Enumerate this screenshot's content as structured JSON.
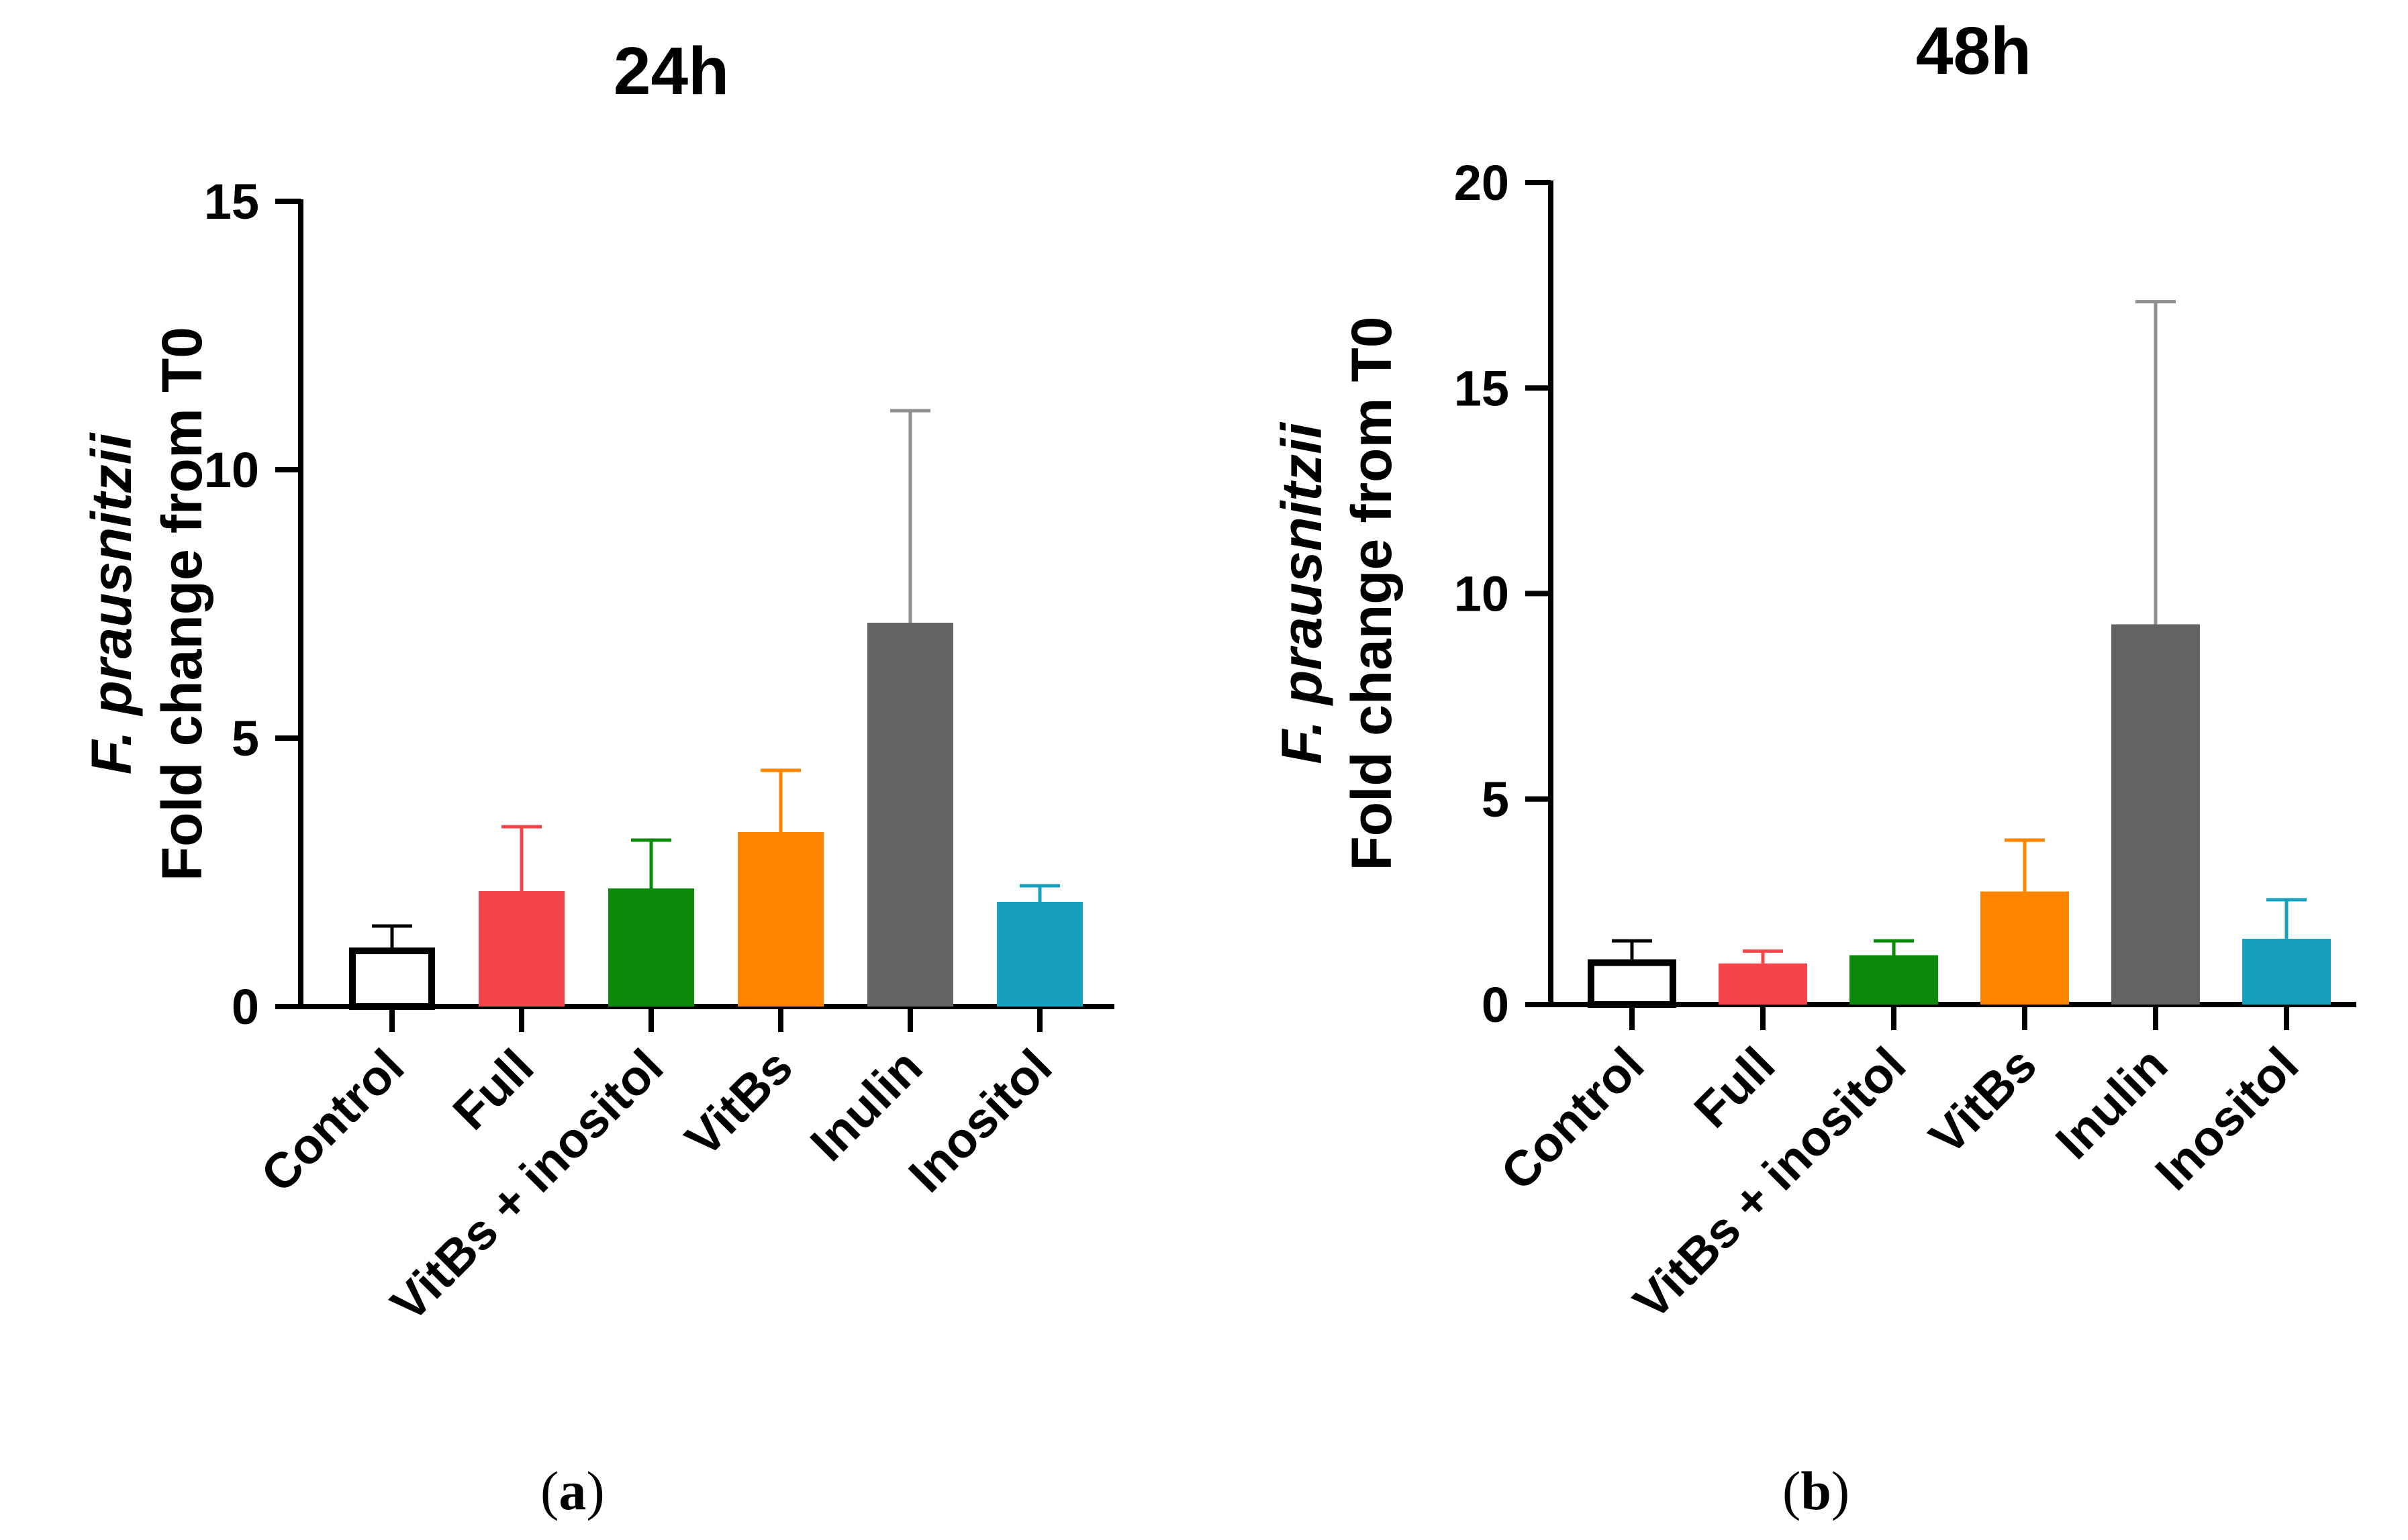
{
  "chart_data": [
    {
      "type": "bar",
      "panel": "(a)",
      "title": "24h",
      "ylabel_italic": "F. prausnitzii",
      "ylabel": "Fold change from T0",
      "xlabel": "",
      "ylim": [
        0,
        15
      ],
      "yticks": [
        0,
        5,
        10,
        15
      ],
      "categories": [
        "Control",
        "Full",
        "VitBs + inositol",
        "VitBs",
        "Inulin",
        "Inositol"
      ],
      "values": [
        1.1,
        2.15,
        2.2,
        3.25,
        7.15,
        1.95
      ],
      "errors": [
        0.4,
        1.2,
        0.9,
        1.15,
        3.95,
        0.3
      ],
      "colors": [
        "#ffffff",
        "#f4454b",
        "#0b8a0b",
        "#ff8400",
        "#636363",
        "#16a0bd"
      ],
      "edge_colors": [
        "#000000",
        "#f4454b",
        "#0b8a0b",
        "#ff8400",
        "#636363",
        "#16a0bd"
      ],
      "error_colors": [
        "#000000",
        "#f4454b",
        "#0b8a0b",
        "#ff8400",
        "#909090",
        "#16a0bd"
      ]
    },
    {
      "type": "bar",
      "panel": "(b)",
      "title": "48h",
      "ylabel_italic": "F. prausnitzii",
      "ylabel": "Fold change from T0",
      "xlabel": "",
      "ylim": [
        0,
        20
      ],
      "yticks": [
        0,
        5,
        10,
        15,
        20
      ],
      "categories": [
        "Control",
        "Full",
        "VitBs + inositol",
        "VitBs",
        "Inulin",
        "Inositol"
      ],
      "values": [
        1.1,
        1.0,
        1.2,
        2.75,
        9.25,
        1.6
      ],
      "errors": [
        0.45,
        0.3,
        0.35,
        1.25,
        7.85,
        0.95
      ],
      "colors": [
        "#ffffff",
        "#f4454b",
        "#0b8a0b",
        "#ff8400",
        "#636363",
        "#16a0bd"
      ],
      "edge_colors": [
        "#000000",
        "#f4454b",
        "#0b8a0b",
        "#ff8400",
        "#636363",
        "#16a0bd"
      ],
      "error_colors": [
        "#000000",
        "#f4454b",
        "#0b8a0b",
        "#ff8400",
        "#909090",
        "#16a0bd"
      ]
    }
  ]
}
